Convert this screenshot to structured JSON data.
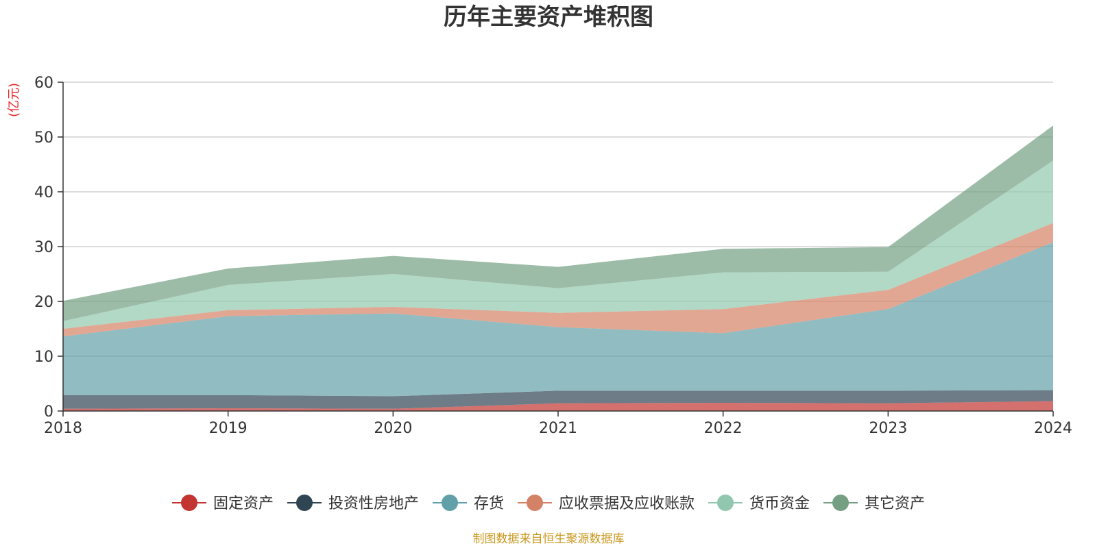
{
  "chart_data": {
    "type": "area",
    "stacked": true,
    "title": "历年主要资产堆积图",
    "unit_label": "(亿元)",
    "x": [
      "2018",
      "2019",
      "2020",
      "2021",
      "2022",
      "2023",
      "2024"
    ],
    "ylim": [
      0,
      60
    ],
    "yticks": [
      0,
      10,
      20,
      30,
      40,
      50,
      60
    ],
    "grid": true,
    "legend_position": "bottom",
    "series": [
      {
        "name": "固定资产",
        "color": "#c23531",
        "values": [
          0.4,
          0.5,
          0.4,
          1.4,
          1.5,
          1.4,
          1.8
        ]
      },
      {
        "name": "投资性房地产",
        "color": "#2f4554",
        "values": [
          2.5,
          2.4,
          2.3,
          2.3,
          2.2,
          2.3,
          2.0
        ]
      },
      {
        "name": "存货",
        "color": "#61a0a8",
        "values": [
          10.7,
          14.4,
          15.1,
          11.6,
          10.5,
          14.9,
          27.0
        ]
      },
      {
        "name": "应收票据及应收账款",
        "color": "#d48265",
        "values": [
          1.4,
          1.1,
          1.2,
          2.6,
          4.4,
          3.5,
          3.5
        ]
      },
      {
        "name": "货币资金",
        "color": "#91c7ae",
        "values": [
          1.4,
          4.6,
          6.0,
          4.5,
          6.7,
          3.3,
          11.4
        ]
      },
      {
        "name": "其它资产",
        "color": "#749f83",
        "values": [
          3.7,
          3.0,
          3.3,
          3.9,
          4.3,
          4.5,
          6.4
        ]
      }
    ]
  },
  "footer": {
    "source": "制图数据来自恒生聚源数据库"
  }
}
